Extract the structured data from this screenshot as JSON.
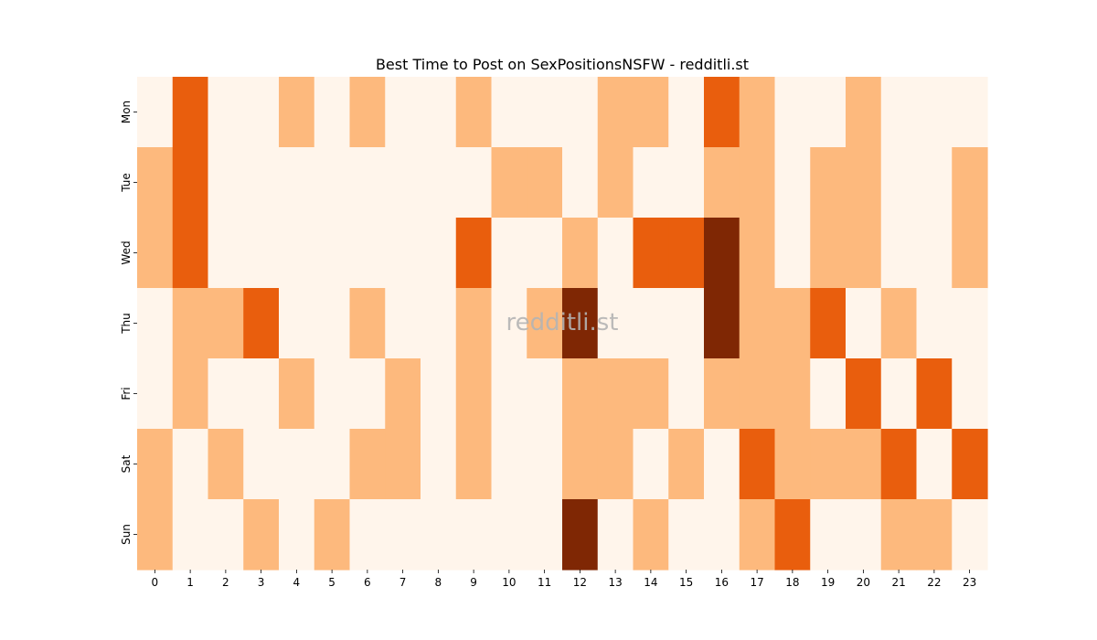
{
  "chart_data": {
    "type": "heatmap",
    "title": "Best Time to Post on SexPositionsNSFW - redditli.st",
    "xlabel": "",
    "ylabel": "",
    "x": [
      "0",
      "1",
      "2",
      "3",
      "4",
      "5",
      "6",
      "7",
      "8",
      "9",
      "10",
      "11",
      "12",
      "13",
      "14",
      "15",
      "16",
      "17",
      "18",
      "19",
      "20",
      "21",
      "22",
      "23"
    ],
    "y": [
      "Mon",
      "Tue",
      "Wed",
      "Thu",
      "Fri",
      "Sat",
      "Sun"
    ],
    "values": [
      [
        0,
        2,
        0,
        0,
        1,
        0,
        1,
        0,
        0,
        1,
        0,
        0,
        0,
        1,
        1,
        0,
        2,
        1,
        0,
        0,
        1,
        0,
        0,
        0
      ],
      [
        1,
        2,
        0,
        0,
        0,
        0,
        0,
        0,
        0,
        0,
        1,
        1,
        0,
        1,
        0,
        0,
        1,
        1,
        0,
        1,
        1,
        0,
        0,
        1
      ],
      [
        1,
        2,
        0,
        0,
        0,
        0,
        0,
        0,
        0,
        2,
        0,
        0,
        1,
        0,
        2,
        2,
        3,
        1,
        0,
        1,
        1,
        0,
        0,
        1
      ],
      [
        0,
        1,
        1,
        2,
        0,
        0,
        1,
        0,
        0,
        1,
        0,
        1,
        3,
        0,
        0,
        0,
        3,
        1,
        1,
        2,
        0,
        1,
        0,
        0
      ],
      [
        0,
        1,
        0,
        0,
        1,
        0,
        0,
        1,
        0,
        1,
        0,
        0,
        1,
        1,
        1,
        0,
        1,
        1,
        1,
        0,
        2,
        0,
        2,
        0
      ],
      [
        1,
        0,
        1,
        0,
        0,
        0,
        1,
        1,
        0,
        1,
        0,
        0,
        1,
        1,
        0,
        1,
        0,
        2,
        1,
        1,
        1,
        2,
        0,
        2
      ],
      [
        1,
        0,
        0,
        1,
        0,
        1,
        0,
        0,
        0,
        0,
        0,
        0,
        3,
        0,
        1,
        0,
        0,
        1,
        2,
        0,
        0,
        1,
        1,
        0
      ]
    ],
    "colorbar": false,
    "colors": [
      "#fff5eb",
      "#fdb97d",
      "#e95e0d",
      "#7f2704"
    ],
    "annotation": "redditli.st"
  }
}
